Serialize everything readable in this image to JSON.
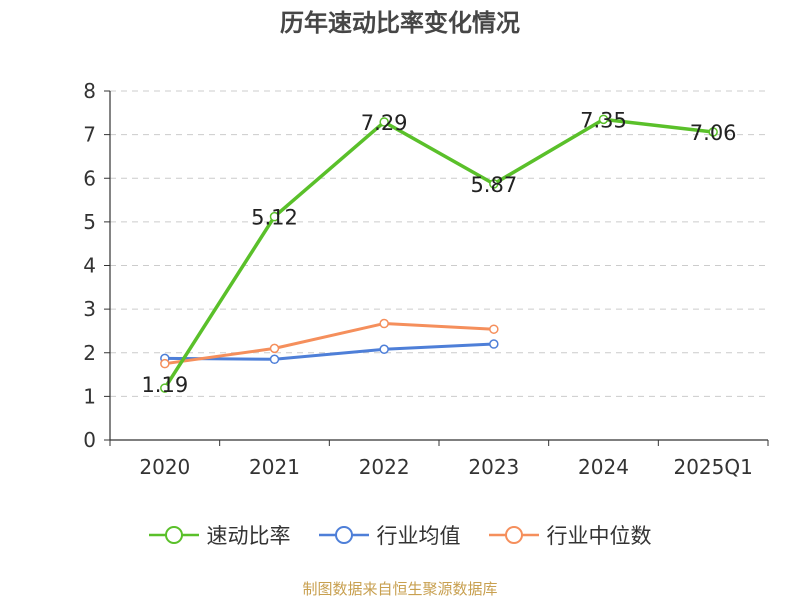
{
  "chart_data": {
    "type": "line",
    "title": "历年速动比率变化情况",
    "categories": [
      "2020",
      "2021",
      "2022",
      "2023",
      "2024",
      "2025Q1"
    ],
    "ylim": [
      0,
      8
    ],
    "yticks": [
      "0",
      "1",
      "2",
      "3",
      "4",
      "5",
      "6",
      "7",
      "8"
    ],
    "grid": true,
    "legend_position": "bottom",
    "series": [
      {
        "name": "速动比率",
        "color": "#5ac02a",
        "values": [
          1.19,
          5.12,
          7.29,
          5.87,
          7.35,
          7.06
        ],
        "labels": [
          "1.19",
          "5.12",
          "7.29",
          "5.87",
          "7.35",
          "7.06"
        ]
      },
      {
        "name": "行业均值",
        "color": "#4e7fd8",
        "values": [
          1.87,
          1.85,
          2.08,
          2.2,
          null,
          null
        ]
      },
      {
        "name": "行业中位数",
        "color": "#f58f5c",
        "values": [
          1.75,
          2.1,
          2.67,
          2.54,
          null,
          null
        ]
      }
    ]
  },
  "source": "制图数据来自恒生聚源数据库"
}
